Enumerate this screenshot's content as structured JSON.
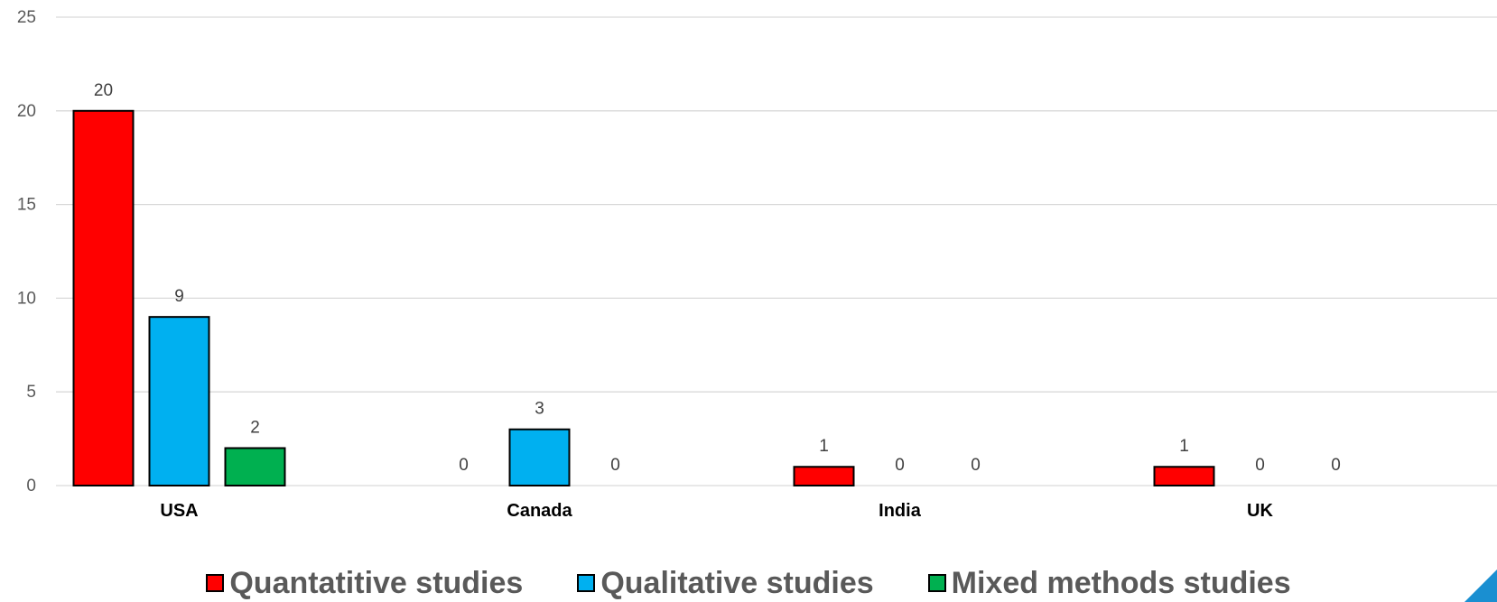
{
  "chart_data": {
    "type": "bar",
    "categories": [
      "USA",
      "Canada",
      "India",
      "UK"
    ],
    "series": [
      {
        "name": "Quantatitive studies",
        "values": [
          20,
          0,
          1,
          1
        ],
        "color": "#ff0000"
      },
      {
        "name": "Qualitative studies",
        "values": [
          9,
          3,
          0,
          0
        ],
        "color": "#00b0f0"
      },
      {
        "name": "Mixed methods studies",
        "values": [
          2,
          0,
          0,
          0
        ],
        "color": "#00b050"
      }
    ],
    "ylim": [
      0,
      25
    ],
    "yticks": [
      0,
      5,
      10,
      15,
      20,
      25
    ],
    "grid": true,
    "legend_position": "bottom",
    "title": "",
    "xlabel": "",
    "ylabel": ""
  },
  "colors": {
    "gridline": "#d9d9d9",
    "bar_border": "#000000",
    "corner_accent": "#1a8fd1"
  }
}
